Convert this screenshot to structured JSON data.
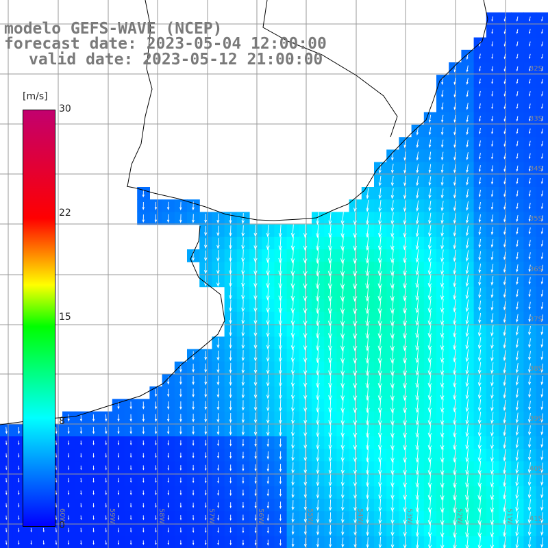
{
  "title": {
    "line1": "modelo GEFS-WAVE (NCEP)",
    "line2": "forecast date: 2023-05-04 12:00:00",
    "line3": "valid date: 2023-05-12 21:00:00"
  },
  "colorbar": {
    "unit": "[m/s]",
    "ticks": [
      "30",
      "22",
      "15",
      "8",
      "0"
    ],
    "tick_values": [
      30,
      22,
      15,
      8,
      0
    ],
    "min": 0,
    "max": 30,
    "colors": [
      "#0000ff",
      "#00ffff",
      "#00ff00",
      "#ffff00",
      "#ff0000",
      "#c2006e"
    ]
  },
  "map": {
    "lat_labels": [
      "32S",
      "33S",
      "34S",
      "35S",
      "36S",
      "37S",
      "38S",
      "39S",
      "40S",
      "41S"
    ],
    "lon_labels": [
      "60W",
      "59W",
      "58W",
      "57W",
      "56W",
      "55W",
      "54W",
      "53W",
      "52W",
      "51W"
    ],
    "land_color": "#ffffff",
    "grid_color": "#9a9a9a",
    "coast_color": "#000000",
    "arrow_color": "#ffffff"
  }
}
